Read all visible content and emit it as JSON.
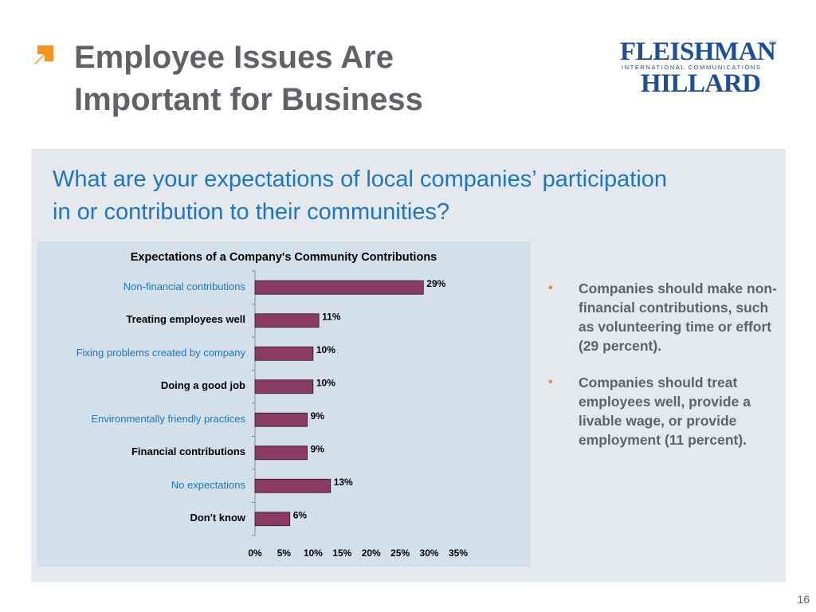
{
  "slide": {
    "title_line1": "Employee Issues Are",
    "title_line2": "Important for Business",
    "page_number": "16",
    "accent_color": "#f7941d"
  },
  "logo": {
    "line1": "FLEISHMAN",
    "mark": "SM",
    "line2": "INTERNATIONAL COMMUNICATIONS",
    "line3": "HILLARD",
    "color": "#1b4e9b"
  },
  "question": {
    "line1": "What are your expectations of local companies’ participation",
    "line2": "in or contribution to their communities?"
  },
  "bullets": [
    {
      "text": "Companies should make non-financial contributions, such as volunteering time or effort (29 percent)."
    },
    {
      "text": "Companies should treat employees well, provide a livable wage, or provide employment (11 percent)."
    }
  ],
  "chart_data": {
    "type": "bar",
    "orientation": "horizontal",
    "title": "Expectations of a Company's Community Contributions",
    "categories": [
      "Non-financial contributions",
      "Treating employees well",
      "Fixing problems created by company",
      "Doing a good job",
      "Environmentally friendly practices",
      "Financial contributions",
      "No expectations",
      "Don't know"
    ],
    "values": [
      29,
      11,
      10,
      10,
      9,
      9,
      13,
      6
    ],
    "value_labels": [
      "29%",
      "11%",
      "10%",
      "10%",
      "9%",
      "9%",
      "13%",
      "6%"
    ],
    "xlim": [
      0,
      35
    ],
    "xticks": [
      0,
      5,
      10,
      15,
      20,
      25,
      30,
      35
    ],
    "xtick_labels": [
      "0%",
      "5%",
      "10%",
      "15%",
      "20%",
      "25%",
      "30%",
      "35%"
    ],
    "bar_color": "#8b3a62",
    "grid": false,
    "legend": "none"
  }
}
